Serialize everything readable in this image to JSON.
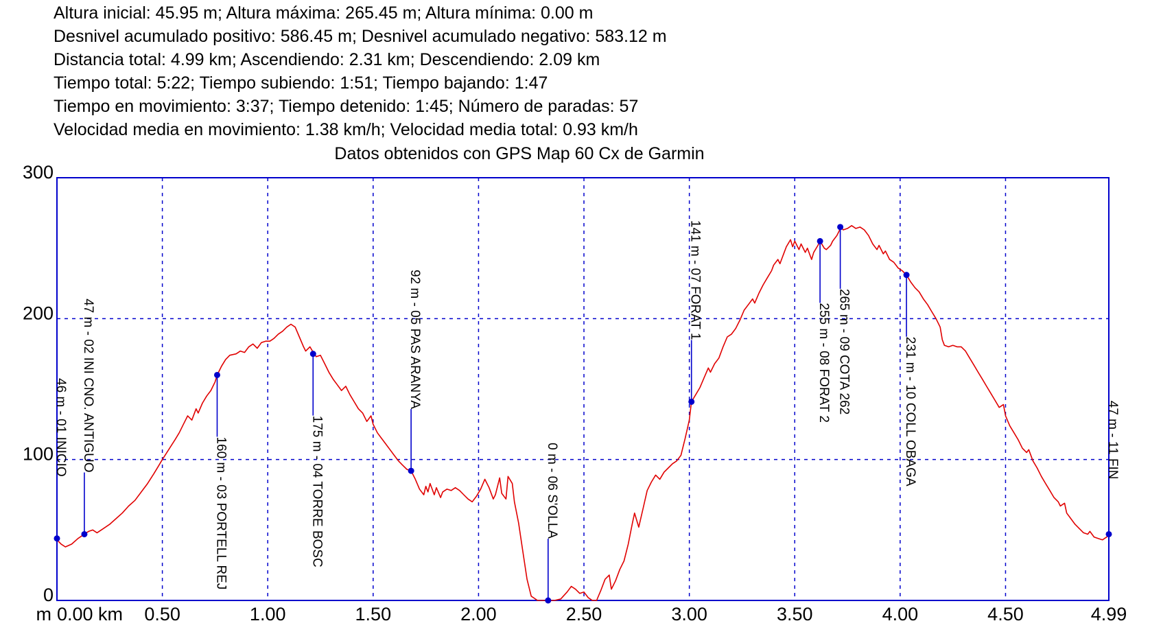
{
  "stats_header": {
    "lines": [
      "Altura inicial: 45.95 m; Altura máxima: 265.45 m; Altura mínima: 0.00 m",
      "Desnivel acumulado positivo: 586.45 m; Desnivel acumulado negativo: 583.12 m",
      "Distancia total: 4.99 km; Ascendiendo: 2.31 km; Descendiendo: 2.09 km",
      "Tiempo total: 5:22; Tiempo subiendo: 1:51; Tiempo bajando: 1:47",
      "Tiempo en movimiento: 3:37; Tiempo detenido: 1:45; Número de paradas: 57",
      "Velocidad media en movimiento: 1.38 km/h; Velocidad media total: 0.93 km/h"
    ]
  },
  "chart_data": {
    "type": "line",
    "title": "Datos obtenidos con GPS Map 60 Cx de Garmin",
    "xlabel": "km",
    "ylabel": "m",
    "xlim": [
      0,
      4.99
    ],
    "ylim": [
      0,
      300
    ],
    "grid": {
      "vertical_step_km": 0.5,
      "horizontal_step_m": 100,
      "style": "dashed"
    },
    "legend": null,
    "colors": {
      "profile_line": "#E00000",
      "axis_and_grid": "#0000CC",
      "waypoint_marker": "#0000CC",
      "text": "#000000",
      "background": "#FFFFFF"
    },
    "x_ticks": [
      {
        "v": 0.0,
        "label": "0.00 km"
      },
      {
        "v": 0.5,
        "label": "0.50"
      },
      {
        "v": 1.0,
        "label": "1.00"
      },
      {
        "v": 1.5,
        "label": "1.50"
      },
      {
        "v": 2.0,
        "label": "2.00"
      },
      {
        "v": 2.5,
        "label": "2.50"
      },
      {
        "v": 3.0,
        "label": "3.00"
      },
      {
        "v": 3.5,
        "label": "3.50"
      },
      {
        "v": 4.0,
        "label": "4.00"
      },
      {
        "v": 4.5,
        "label": "4.50"
      },
      {
        "v": 4.99,
        "label": "4.99"
      }
    ],
    "y_ticks": [
      {
        "v": 0,
        "label": "0"
      },
      {
        "v": 100,
        "label": "100"
      },
      {
        "v": 200,
        "label": "200"
      },
      {
        "v": 300,
        "label": "300"
      }
    ],
    "y_unit_label": "m",
    "waypoints": [
      {
        "km": 0.0,
        "ele": 44,
        "label": "46 m - 01 INICIO",
        "side": "above",
        "gap": 90
      },
      {
        "km": 0.13,
        "ele": 47,
        "label": "47 m - 02 INI CNO. ANTIGUO",
        "side": "above",
        "gap": 90
      },
      {
        "km": 0.76,
        "ele": 160,
        "label": "160 m - 03 PORTELL REJ",
        "side": "below",
        "gap": 90
      },
      {
        "km": 1.215,
        "ele": 175,
        "label": "175 m - 04 TORRE BOSC",
        "side": "below",
        "gap": 90
      },
      {
        "km": 1.68,
        "ele": 92,
        "label": "92 m - 05 PAS ARANYA",
        "side": "above",
        "gap": 90
      },
      {
        "km": 2.33,
        "ele": 0,
        "label": "0 m - 06 S'OLLA",
        "side": "above",
        "gap": 90
      },
      {
        "km": 3.01,
        "ele": 141,
        "label": "141 m - 07 FORAT 1",
        "side": "above",
        "gap": 90
      },
      {
        "km": 3.62,
        "ele": 255,
        "label": "255 m - 08 FORAT 2",
        "side": "below",
        "gap": 90
      },
      {
        "km": 3.716,
        "ele": 265,
        "label": "265 m - 09 COTA 262",
        "side": "below",
        "gap": 90
      },
      {
        "km": 4.03,
        "ele": 231,
        "label": "231 m - 10 COLL OBAGA",
        "side": "below",
        "gap": 90
      },
      {
        "km": 4.99,
        "ele": 47,
        "label": "47 m - 11 FIN",
        "side": "above",
        "gap": 80
      }
    ],
    "profile_km_m": [
      [
        0,
        43
      ],
      [
        0.02,
        40
      ],
      [
        0.04,
        38
      ],
      [
        0.07,
        40
      ],
      [
        0.1,
        44
      ],
      [
        0.13,
        47
      ],
      [
        0.15,
        49
      ],
      [
        0.17,
        50
      ],
      [
        0.19,
        48
      ],
      [
        0.22,
        51
      ],
      [
        0.25,
        54
      ],
      [
        0.28,
        58
      ],
      [
        0.31,
        62
      ],
      [
        0.34,
        67
      ],
      [
        0.37,
        71
      ],
      [
        0.4,
        77
      ],
      [
        0.43,
        83
      ],
      [
        0.46,
        90
      ],
      [
        0.48,
        95
      ],
      [
        0.5,
        100
      ],
      [
        0.53,
        107
      ],
      [
        0.56,
        114
      ],
      [
        0.58,
        119
      ],
      [
        0.6,
        125
      ],
      [
        0.62,
        131
      ],
      [
        0.64,
        128
      ],
      [
        0.66,
        136
      ],
      [
        0.67,
        133
      ],
      [
        0.69,
        140
      ],
      [
        0.71,
        145
      ],
      [
        0.73,
        149
      ],
      [
        0.75,
        155
      ],
      [
        0.76,
        160
      ],
      [
        0.78,
        166
      ],
      [
        0.8,
        171
      ],
      [
        0.82,
        174
      ],
      [
        0.85,
        175
      ],
      [
        0.87,
        177
      ],
      [
        0.89,
        176
      ],
      [
        0.91,
        180
      ],
      [
        0.93,
        182
      ],
      [
        0.95,
        179
      ],
      [
        0.97,
        183
      ],
      [
        0.99,
        184
      ],
      [
        1.01,
        184
      ],
      [
        1.03,
        186
      ],
      [
        1.05,
        189
      ],
      [
        1.07,
        191
      ],
      [
        1.09,
        194
      ],
      [
        1.11,
        196
      ],
      [
        1.13,
        194
      ],
      [
        1.15,
        187
      ],
      [
        1.17,
        180
      ],
      [
        1.18,
        177
      ],
      [
        1.2,
        180
      ],
      [
        1.22,
        175
      ],
      [
        1.23,
        173
      ],
      [
        1.25,
        174
      ],
      [
        1.27,
        168
      ],
      [
        1.29,
        162
      ],
      [
        1.31,
        157
      ],
      [
        1.33,
        153
      ],
      [
        1.35,
        149
      ],
      [
        1.37,
        152
      ],
      [
        1.39,
        146
      ],
      [
        1.41,
        141
      ],
      [
        1.43,
        136
      ],
      [
        1.45,
        133
      ],
      [
        1.47,
        127
      ],
      [
        1.49,
        131
      ],
      [
        1.5,
        125
      ],
      [
        1.52,
        119
      ],
      [
        1.54,
        115
      ],
      [
        1.56,
        111
      ],
      [
        1.58,
        107
      ],
      [
        1.6,
        103
      ],
      [
        1.62,
        99
      ],
      [
        1.64,
        96
      ],
      [
        1.66,
        93
      ],
      [
        1.68,
        92
      ],
      [
        1.7,
        86
      ],
      [
        1.72,
        79
      ],
      [
        1.74,
        75
      ],
      [
        1.75,
        81
      ],
      [
        1.76,
        77
      ],
      [
        1.77,
        83
      ],
      [
        1.79,
        75
      ],
      [
        1.8,
        80
      ],
      [
        1.82,
        73
      ],
      [
        1.83,
        77
      ],
      [
        1.85,
        79
      ],
      [
        1.87,
        78
      ],
      [
        1.89,
        80
      ],
      [
        1.91,
        78
      ],
      [
        1.93,
        75
      ],
      [
        1.95,
        72
      ],
      [
        1.97,
        70
      ],
      [
        1.99,
        74
      ],
      [
        2.01,
        79
      ],
      [
        2.03,
        86
      ],
      [
        2.05,
        80
      ],
      [
        2.07,
        72
      ],
      [
        2.08,
        75
      ],
      [
        2.1,
        87
      ],
      [
        2.11,
        76
      ],
      [
        2.13,
        72
      ],
      [
        2.14,
        88
      ],
      [
        2.16,
        83
      ],
      [
        2.17,
        70
      ],
      [
        2.19,
        55
      ],
      [
        2.21,
        35
      ],
      [
        2.23,
        15
      ],
      [
        2.25,
        3
      ],
      [
        2.28,
        0
      ],
      [
        2.33,
        0
      ],
      [
        2.36,
        0
      ],
      [
        2.39,
        1
      ],
      [
        2.42,
        6
      ],
      [
        2.44,
        10
      ],
      [
        2.46,
        8
      ],
      [
        2.48,
        5
      ],
      [
        2.5,
        6
      ],
      [
        2.52,
        2
      ],
      [
        2.54,
        0
      ],
      [
        2.56,
        0
      ],
      [
        2.58,
        7
      ],
      [
        2.6,
        15
      ],
      [
        2.62,
        18
      ],
      [
        2.63,
        8
      ],
      [
        2.65,
        14
      ],
      [
        2.67,
        22
      ],
      [
        2.69,
        28
      ],
      [
        2.71,
        40
      ],
      [
        2.73,
        55
      ],
      [
        2.74,
        62
      ],
      [
        2.76,
        52
      ],
      [
        2.78,
        65
      ],
      [
        2.8,
        78
      ],
      [
        2.82,
        84
      ],
      [
        2.84,
        89
      ],
      [
        2.86,
        86
      ],
      [
        2.88,
        91
      ],
      [
        2.9,
        94
      ],
      [
        2.92,
        97
      ],
      [
        2.94,
        99
      ],
      [
        2.96,
        103
      ],
      [
        2.98,
        115
      ],
      [
        3,
        128
      ],
      [
        3.01,
        141
      ],
      [
        3.03,
        146
      ],
      [
        3.05,
        151
      ],
      [
        3.07,
        158
      ],
      [
        3.09,
        165
      ],
      [
        3.1,
        162
      ],
      [
        3.12,
        168
      ],
      [
        3.14,
        172
      ],
      [
        3.16,
        180
      ],
      [
        3.18,
        187
      ],
      [
        3.2,
        189
      ],
      [
        3.22,
        193
      ],
      [
        3.24,
        199
      ],
      [
        3.26,
        206
      ],
      [
        3.28,
        210
      ],
      [
        3.3,
        214
      ],
      [
        3.31,
        211
      ],
      [
        3.33,
        218
      ],
      [
        3.35,
        224
      ],
      [
        3.37,
        229
      ],
      [
        3.39,
        234
      ],
      [
        3.4,
        238
      ],
      [
        3.42,
        242
      ],
      [
        3.43,
        239
      ],
      [
        3.45,
        247
      ],
      [
        3.46,
        251
      ],
      [
        3.48,
        256
      ],
      [
        3.49,
        251
      ],
      [
        3.5,
        255
      ],
      [
        3.52,
        249
      ],
      [
        3.53,
        253
      ],
      [
        3.55,
        247
      ],
      [
        3.56,
        250
      ],
      [
        3.58,
        242
      ],
      [
        3.59,
        247
      ],
      [
        3.61,
        252
      ],
      [
        3.62,
        255
      ],
      [
        3.64,
        250
      ],
      [
        3.65,
        249
      ],
      [
        3.67,
        252
      ],
      [
        3.68,
        255
      ],
      [
        3.7,
        259
      ],
      [
        3.72,
        265
      ],
      [
        3.73,
        263
      ],
      [
        3.75,
        264
      ],
      [
        3.77,
        266
      ],
      [
        3.79,
        264
      ],
      [
        3.81,
        265
      ],
      [
        3.83,
        263
      ],
      [
        3.85,
        259
      ],
      [
        3.87,
        253
      ],
      [
        3.89,
        249
      ],
      [
        3.9,
        252
      ],
      [
        3.92,
        246
      ],
      [
        3.93,
        248
      ],
      [
        3.95,
        242
      ],
      [
        3.97,
        240
      ],
      [
        3.99,
        236
      ],
      [
        4.01,
        234
      ],
      [
        4.03,
        231
      ],
      [
        4.05,
        226
      ],
      [
        4.07,
        222
      ],
      [
        4.09,
        219
      ],
      [
        4.11,
        214
      ],
      [
        4.13,
        210
      ],
      [
        4.15,
        205
      ],
      [
        4.17,
        200
      ],
      [
        4.19,
        194
      ],
      [
        4.2,
        185
      ],
      [
        4.21,
        181
      ],
      [
        4.23,
        180
      ],
      [
        4.25,
        181
      ],
      [
        4.27,
        180
      ],
      [
        4.29,
        180
      ],
      [
        4.31,
        177
      ],
      [
        4.33,
        172
      ],
      [
        4.35,
        167
      ],
      [
        4.37,
        162
      ],
      [
        4.39,
        157
      ],
      [
        4.41,
        152
      ],
      [
        4.43,
        147
      ],
      [
        4.45,
        142
      ],
      [
        4.47,
        137
      ],
      [
        4.49,
        139
      ],
      [
        4.5,
        131
      ],
      [
        4.52,
        124
      ],
      [
        4.54,
        119
      ],
      [
        4.56,
        114
      ],
      [
        4.58,
        108
      ],
      [
        4.6,
        105
      ],
      [
        4.61,
        107
      ],
      [
        4.63,
        99
      ],
      [
        4.65,
        94
      ],
      [
        4.67,
        88
      ],
      [
        4.69,
        83
      ],
      [
        4.71,
        78
      ],
      [
        4.73,
        73
      ],
      [
        4.75,
        70
      ],
      [
        4.76,
        67
      ],
      [
        4.78,
        69
      ],
      [
        4.79,
        62
      ],
      [
        4.81,
        58
      ],
      [
        4.83,
        54
      ],
      [
        4.85,
        51
      ],
      [
        4.87,
        48
      ],
      [
        4.89,
        47
      ],
      [
        4.9,
        49
      ],
      [
        4.92,
        45
      ],
      [
        4.94,
        44
      ],
      [
        4.96,
        43
      ],
      [
        4.98,
        45
      ],
      [
        4.99,
        47
      ]
    ]
  }
}
